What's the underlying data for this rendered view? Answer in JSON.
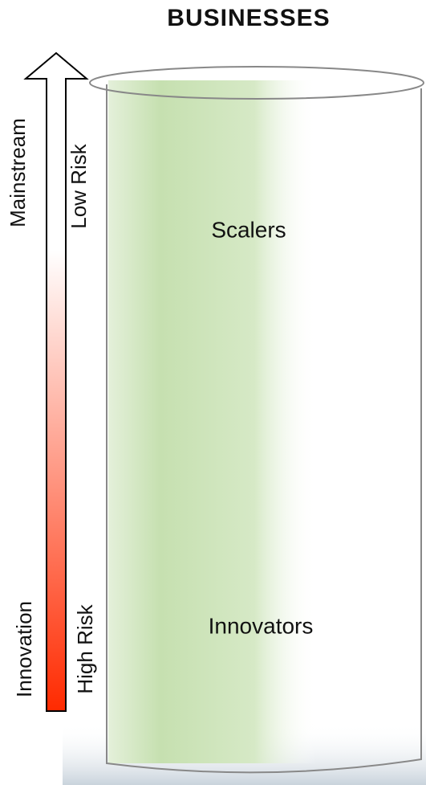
{
  "title": "BUSINESSES",
  "axis": {
    "left_top": "Mainstream",
    "left_bottom": "Innovation",
    "right_top": "Low Risk",
    "right_bottom": "High Risk"
  },
  "segments": [
    {
      "label": "Scalers"
    },
    {
      "label": "Innovators"
    }
  ]
}
